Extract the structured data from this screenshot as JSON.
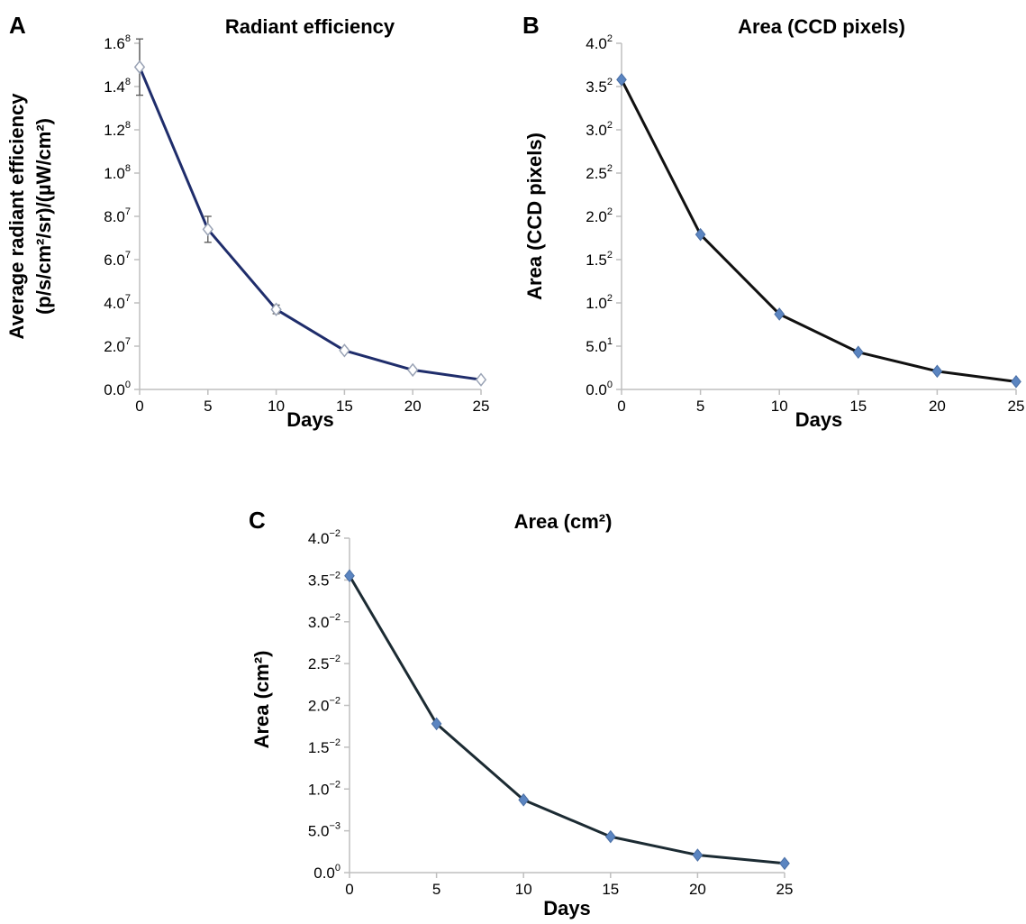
{
  "chart_data": [
    {
      "panel_label": "A",
      "type": "line",
      "title": "Radiant efficiency",
      "xlabel": "Days",
      "ylabel_lines": [
        "Average radiant efficiency",
        "(p/s/cm²/sr)/(µW/cm²)"
      ],
      "xlim": [
        0,
        25
      ],
      "ylim": [
        0,
        160000000
      ],
      "x_ticks": [
        0,
        5,
        10,
        15,
        20,
        25
      ],
      "y_ticks": [
        {
          "value": 0,
          "base": "0.0",
          "exp": "0"
        },
        {
          "value": 20000000,
          "base": "2.0",
          "exp": "7"
        },
        {
          "value": 40000000,
          "base": "4.0",
          "exp": "7"
        },
        {
          "value": 60000000,
          "base": "6.0",
          "exp": "7"
        },
        {
          "value": 80000000,
          "base": "8.0",
          "exp": "7"
        },
        {
          "value": 100000000,
          "base": "1.0",
          "exp": "8"
        },
        {
          "value": 120000000,
          "base": "1.2",
          "exp": "8"
        },
        {
          "value": 140000000,
          "base": "1.4",
          "exp": "8"
        },
        {
          "value": 160000000,
          "base": "1.6",
          "exp": "8"
        }
      ],
      "series": [
        {
          "x": [
            0,
            5,
            10,
            15,
            20,
            25
          ],
          "y": [
            149000000,
            74000000,
            37000000,
            18000000,
            9000000,
            4500000
          ],
          "error": [
            13000000,
            6000000,
            2000000,
            1000000,
            500000,
            300000
          ],
          "line_color": "#1f2d6b",
          "marker": "open-diamond",
          "marker_color": "#ffffff"
        }
      ],
      "grid": false
    },
    {
      "panel_label": "B",
      "type": "line",
      "title": "Area (CCD pixels)",
      "xlabel": "Days",
      "ylabel_lines": [
        "Area (CCD pixels)"
      ],
      "xlim": [
        0,
        25
      ],
      "ylim": [
        0,
        400
      ],
      "x_ticks": [
        0,
        5,
        10,
        15,
        20,
        25
      ],
      "y_ticks": [
        {
          "value": 0,
          "base": "0.0",
          "exp": "0"
        },
        {
          "value": 50,
          "base": "5.0",
          "exp": "1"
        },
        {
          "value": 100,
          "base": "1.0",
          "exp": "2"
        },
        {
          "value": 150,
          "base": "1.5",
          "exp": "2"
        },
        {
          "value": 200,
          "base": "2.0",
          "exp": "2"
        },
        {
          "value": 250,
          "base": "2.5",
          "exp": "2"
        },
        {
          "value": 300,
          "base": "3.0",
          "exp": "2"
        },
        {
          "value": 350,
          "base": "3.5",
          "exp": "2"
        },
        {
          "value": 400,
          "base": "4.0",
          "exp": "2"
        }
      ],
      "series": [
        {
          "x": [
            0,
            5,
            10,
            15,
            20,
            25
          ],
          "y": [
            358,
            179,
            87,
            43,
            21,
            9
          ],
          "line_color": "#111111",
          "marker": "filled-diamond",
          "marker_color": "#5b85c1"
        }
      ],
      "grid": false
    },
    {
      "panel_label": "C",
      "type": "line",
      "title": "Area (cm²)",
      "xlabel": "Days",
      "ylabel_lines": [
        "Area (cm²)"
      ],
      "xlim": [
        0,
        25
      ],
      "ylim": [
        0,
        0.04
      ],
      "x_ticks": [
        0,
        5,
        10,
        15,
        20,
        25
      ],
      "y_ticks": [
        {
          "value": 0,
          "base": "0.0",
          "exp": "0"
        },
        {
          "value": 0.005,
          "base": "5.0",
          "exp": "−3"
        },
        {
          "value": 0.01,
          "base": "1.0",
          "exp": "−2"
        },
        {
          "value": 0.015,
          "base": "1.5",
          "exp": "−2"
        },
        {
          "value": 0.02,
          "base": "2.0",
          "exp": "−2"
        },
        {
          "value": 0.025,
          "base": "2.5",
          "exp": "−2"
        },
        {
          "value": 0.03,
          "base": "3.0",
          "exp": "−2"
        },
        {
          "value": 0.035,
          "base": "3.5",
          "exp": "−2"
        },
        {
          "value": 0.04,
          "base": "4.0",
          "exp": "−2"
        }
      ],
      "series": [
        {
          "x": [
            0,
            5,
            10,
            15,
            20,
            25
          ],
          "y": [
            0.0355,
            0.0178,
            0.0087,
            0.0043,
            0.0021,
            0.0011
          ],
          "line_color": "#1c2b33",
          "marker": "filled-diamond",
          "marker_color": "#5b85c1"
        }
      ],
      "grid": false
    }
  ]
}
